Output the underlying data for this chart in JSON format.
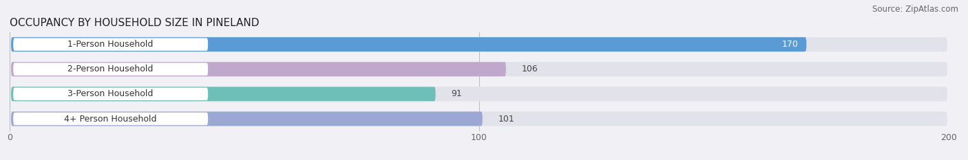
{
  "title": "OCCUPANCY BY HOUSEHOLD SIZE IN PINELAND",
  "source": "Source: ZipAtlas.com",
  "categories": [
    "1-Person Household",
    "2-Person Household",
    "3-Person Household",
    "4+ Person Household"
  ],
  "values": [
    170,
    106,
    91,
    101
  ],
  "bar_colors": [
    "#5b9bd5",
    "#c0a8cc",
    "#6dbfb8",
    "#9ca8d4"
  ],
  "xlim": [
    0,
    200
  ],
  "xticks": [
    0,
    100,
    200
  ],
  "bg_color": "#f0f0f5",
  "bar_bg_color": "#e2e2ea",
  "title_fontsize": 11,
  "source_fontsize": 8.5,
  "label_fontsize": 9,
  "value_fontsize": 9
}
